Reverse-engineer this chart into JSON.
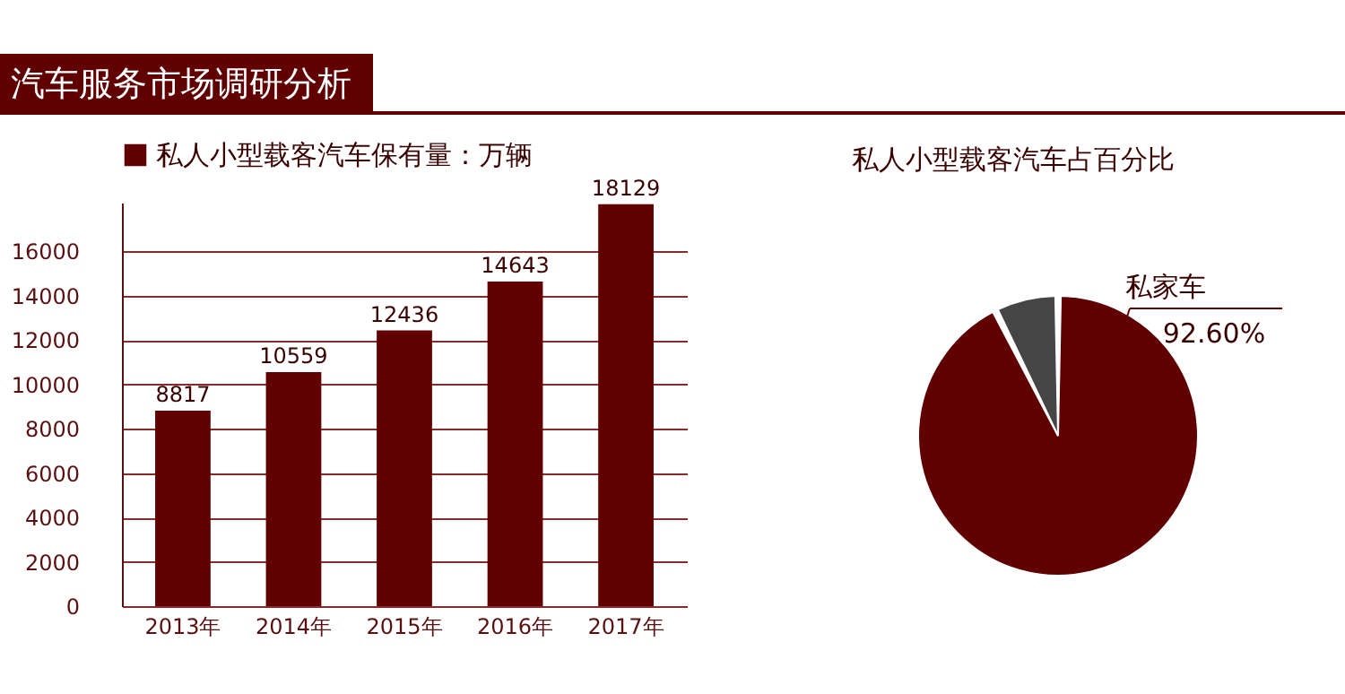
{
  "chart_data": [
    {
      "type": "bar",
      "title": "汽车服务市场调研分析",
      "categories": [
        "2013年",
        "2014年",
        "2015年",
        "2016年",
        "2017年"
      ],
      "series": [
        {
          "name": "私人小型载客汽车保有量：万辆",
          "color": "#600000",
          "values": [
            8817,
            10559,
            12436,
            14643,
            18129
          ]
        }
      ],
      "ylim": [
        0,
        18200
      ],
      "yticks": [
        0,
        2000,
        4000,
        6000,
        8000,
        10000,
        12000,
        14000,
        16000
      ],
      "grid": "y",
      "legend": "top",
      "data_labels": true
    },
    {
      "type": "pie",
      "title": "私人小型载客汽车占百分比",
      "categories": [
        "私家车",
        null
      ],
      "values": [
        92.6,
        7.4
      ],
      "colors": [
        "#600000",
        "#454545"
      ],
      "value_labels": [
        "92.60%",
        null
      ]
    }
  ]
}
